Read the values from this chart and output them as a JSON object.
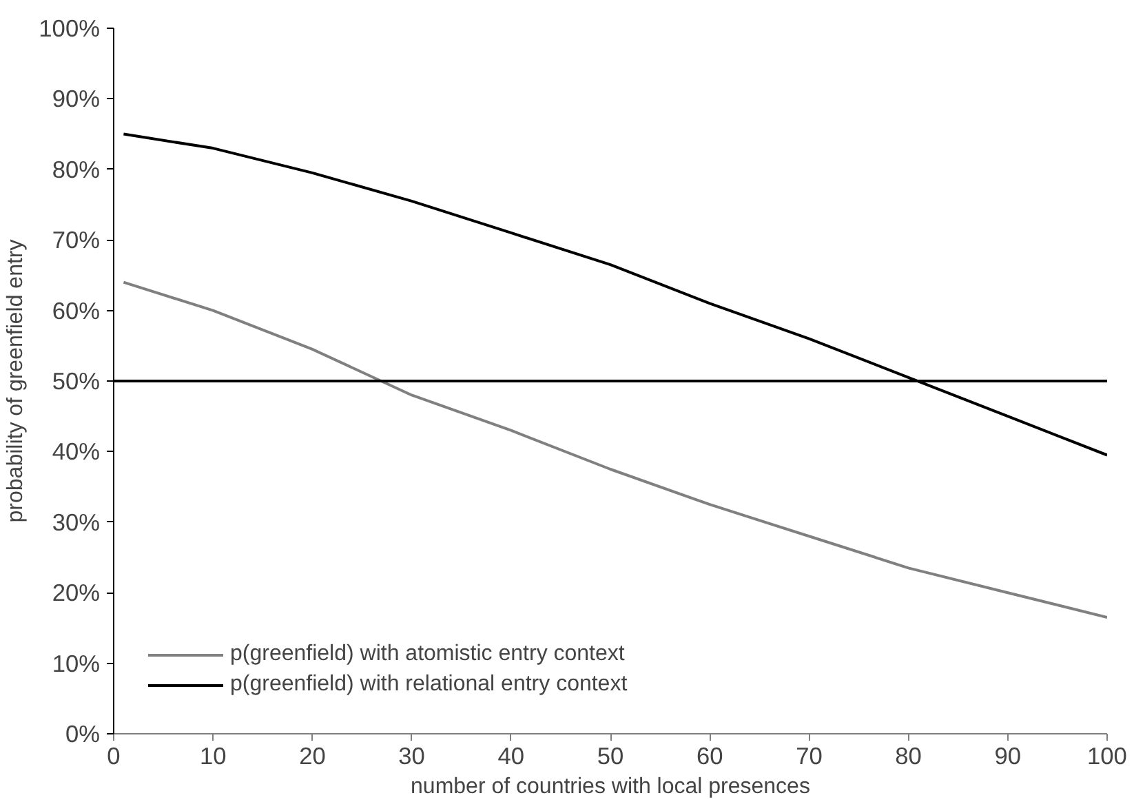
{
  "chart_data": {
    "type": "line",
    "xlabel": "number of countries with local presences",
    "ylabel": "probability of greenfield entry",
    "xlim": [
      0,
      100
    ],
    "xticks": [
      0,
      10,
      20,
      30,
      40,
      50,
      60,
      70,
      80,
      90,
      100
    ],
    "ylim": [
      0,
      100
    ],
    "yticks": [
      {
        "value": 0,
        "label": "0%"
      },
      {
        "value": 10,
        "label": "10%"
      },
      {
        "value": 20,
        "label": "20%"
      },
      {
        "value": 30,
        "label": "30%"
      },
      {
        "value": 40,
        "label": "40%"
      },
      {
        "value": 50,
        "label": "50%"
      },
      {
        "value": 60,
        "label": "60%"
      },
      {
        "value": 70,
        "label": "70%"
      },
      {
        "value": 80,
        "label": "80%"
      },
      {
        "value": 90,
        "label": "90%"
      },
      {
        "value": 100,
        "label": "100%"
      }
    ],
    "x": [
      1,
      10,
      20,
      30,
      40,
      50,
      60,
      70,
      80,
      90,
      100
    ],
    "series": [
      {
        "name": "p(greenfield) with atomistic entry context",
        "color": "#808080",
        "values": [
          64,
          60,
          54.5,
          48,
          43,
          37.5,
          32.5,
          28,
          23.5,
          20,
          16.5
        ]
      },
      {
        "name": "p(greenfield) with relational entry context",
        "color": "#000000",
        "values": [
          85,
          83,
          79.5,
          75.5,
          71,
          66.5,
          61,
          56,
          50.5,
          45,
          39.5
        ]
      }
    ],
    "ref_lines": [
      {
        "axis": "y",
        "value": 50,
        "color": "#000000"
      }
    ],
    "grid": false,
    "legend": "bottom left",
    "line_style": "solid"
  }
}
